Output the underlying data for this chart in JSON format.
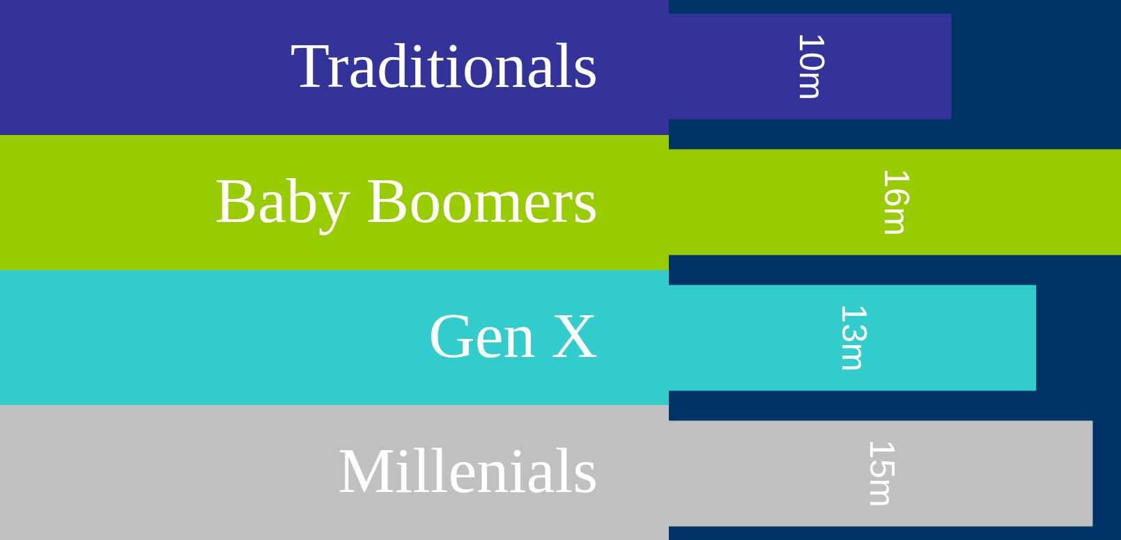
{
  "chart_data": {
    "type": "bar",
    "orientation": "horizontal",
    "categories": [
      "Traditionals",
      "Baby Boomers",
      "Gen X",
      "Millenials"
    ],
    "values": [
      10,
      16,
      13,
      15
    ],
    "colors": [
      "#333399",
      "#99cc00",
      "#33cccc",
      "#c0c0c0"
    ],
    "value_labels": [
      "10m",
      "16m",
      "13m",
      "15m"
    ]
  }
}
